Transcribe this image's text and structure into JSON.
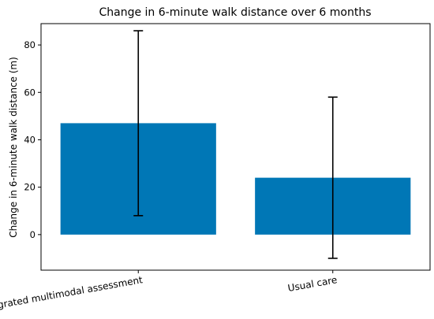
{
  "chart_data": {
    "type": "bar",
    "title": "Change in 6-minute walk distance over 6 months",
    "xlabel": "",
    "ylabel": "Change in 6-minute walk distance (m)",
    "categories": [
      "Integrated multimodal assessment",
      "Usual care"
    ],
    "values": [
      47,
      24
    ],
    "error_low": [
      8,
      -10
    ],
    "error_high": [
      86,
      58
    ],
    "ylim": [
      -15,
      89
    ],
    "yticks": [
      0,
      20,
      40,
      60,
      80
    ],
    "bar_color": "#0077b6",
    "grid": false,
    "legend": "none"
  }
}
